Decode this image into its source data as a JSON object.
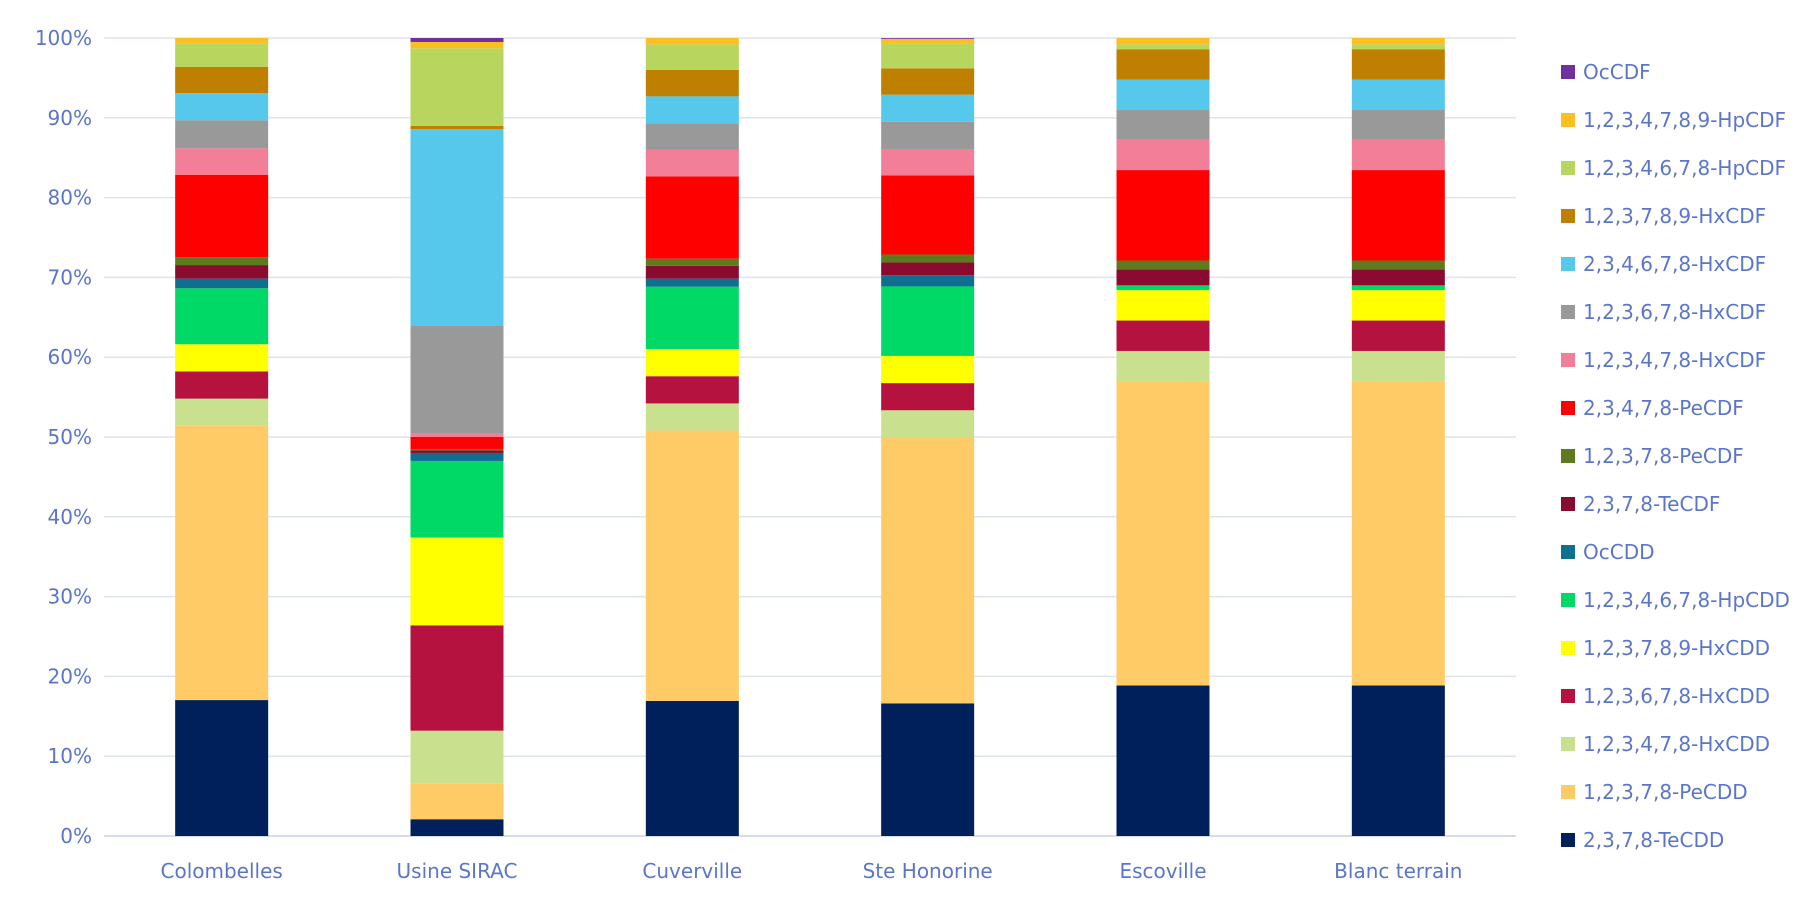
{
  "chart_data": {
    "type": "bar",
    "stacked": true,
    "normalized_percent": true,
    "title": "",
    "xlabel": "",
    "ylabel": "",
    "ylim": [
      0,
      100
    ],
    "y_ticks": [
      "0%",
      "10%",
      "20%",
      "30%",
      "40%",
      "50%",
      "60%",
      "70%",
      "80%",
      "90%",
      "100%"
    ],
    "grid": true,
    "legend_position": "right",
    "categories": [
      "Colombelles",
      "Usine SIRAC",
      "Cuverville",
      "Ste Honorine",
      "Escoville",
      "Blanc terrain"
    ],
    "series": [
      {
        "name": "2,3,7,8-TeCDD",
        "color": "#00205b",
        "values": [
          17.0,
          2.1,
          16.9,
          16.6,
          18.8,
          18.8
        ]
      },
      {
        "name": "1,2,3,7,8-PeCDD",
        "color": "#ffcb66",
        "values": [
          34.3,
          4.5,
          33.8,
          33.3,
          38.0,
          38.0
        ]
      },
      {
        "name": "1,2,3,4,7,8-HxCDD",
        "color": "#c9e08e",
        "values": [
          3.4,
          6.6,
          3.4,
          3.4,
          3.8,
          3.8
        ]
      },
      {
        "name": "1,2,3,6,7,8-HxCDD",
        "color": "#b5123f",
        "values": [
          3.4,
          13.2,
          3.4,
          3.4,
          3.8,
          3.8
        ]
      },
      {
        "name": "1,2,3,7,8,9-HxCDD",
        "color": "#ffff00",
        "values": [
          3.4,
          11.0,
          3.4,
          3.4,
          3.8,
          3.8
        ]
      },
      {
        "name": "1,2,3,4,6,7,8-HpCDD",
        "color": "#00d966",
        "values": [
          7.0,
          9.6,
          7.8,
          8.7,
          0.6,
          0.6
        ]
      },
      {
        "name": "OcCDD",
        "color": "#0e6f8f",
        "values": [
          1.2,
          1.0,
          1.0,
          1.4,
          0.0,
          0.0
        ]
      },
      {
        "name": "2,3,7,8-TeCDF",
        "color": "#8b0a30",
        "values": [
          1.7,
          0.3,
          1.6,
          1.6,
          2.0,
          2.0
        ]
      },
      {
        "name": "1,2,3,7,8-PeCDF",
        "color": "#5e7a1e",
        "values": [
          1.0,
          0.2,
          0.9,
          1.0,
          1.1,
          1.1
        ]
      },
      {
        "name": "2,3,4,7,8-PeCDF",
        "color": "#ff0000",
        "values": [
          10.3,
          1.5,
          10.3,
          9.9,
          11.3,
          11.3
        ]
      },
      {
        "name": "1,2,3,4,7,8-HxCDF",
        "color": "#f27f97",
        "values": [
          3.3,
          0.4,
          3.3,
          3.3,
          3.8,
          3.8
        ]
      },
      {
        "name": "1,2,3,6,7,8-HxCDF",
        "color": "#999999",
        "values": [
          3.5,
          13.6,
          3.3,
          3.4,
          3.8,
          3.8
        ]
      },
      {
        "name": "2,3,4,6,7,8-HxCDF",
        "color": "#55c8eb",
        "values": [
          3.4,
          24.6,
          3.4,
          3.4,
          3.7,
          3.7
        ]
      },
      {
        "name": "1,2,3,7,8,9-HxCDF",
        "color": "#bf7f00",
        "values": [
          3.3,
          0.4,
          3.3,
          3.3,
          3.8,
          3.8
        ]
      },
      {
        "name": "1,2,3,4,6,7,8-HpCDF",
        "color": "#b8d65e",
        "values": [
          2.9,
          9.7,
          3.2,
          3.1,
          0.6,
          0.6
        ]
      },
      {
        "name": "1,2,3,4,7,8,9-HpCDF",
        "color": "#fbbf23",
        "values": [
          0.7,
          0.8,
          0.8,
          0.6,
          0.8,
          0.8
        ]
      },
      {
        "name": "OcCDF",
        "color": "#7030a0",
        "values": [
          0.0,
          0.5,
          0.0,
          0.1,
          0.0,
          0.0
        ]
      }
    ]
  }
}
